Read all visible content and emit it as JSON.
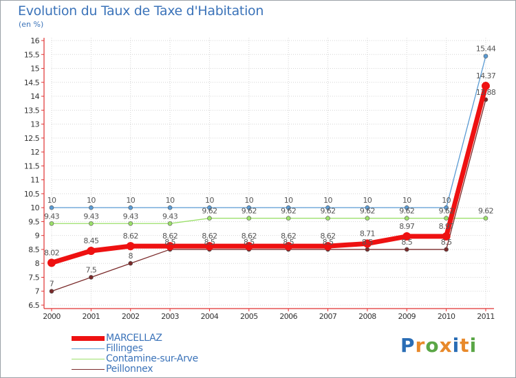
{
  "title": "Evolution du Taux de Taxe d'Habitation",
  "subtitle": "(en %)",
  "logo": {
    "letters": [
      "P",
      "r",
      "o",
      "x",
      "i",
      "t",
      "i"
    ],
    "colors": [
      "#2a6db5",
      "#e8892a",
      "#5aa646",
      "#e8892a",
      "#2a6db5",
      "#e8892a",
      "#5aa646"
    ]
  },
  "chart_data": {
    "type": "line",
    "title": "Evolution du Taux de Taxe d'Habitation",
    "ylabel": "(en %)",
    "x": [
      "2000",
      "2001",
      "2002",
      "2003",
      "2004",
      "2005",
      "2006",
      "2007",
      "2008",
      "2009",
      "2010",
      "2011"
    ],
    "ylim": [
      6.5,
      16
    ],
    "yticks": [
      "6.5",
      "7",
      "7.5",
      "8",
      "8.5",
      "9",
      "9.5",
      "10",
      "10.5",
      "11",
      "11.5",
      "12",
      "12.5",
      "13",
      "13.5",
      "14",
      "14.5",
      "15",
      "15.5",
      "16"
    ],
    "series": [
      {
        "name": "MARCELLAZ",
        "color": "#ee1111",
        "values": [
          8.02,
          8.45,
          8.62,
          8.62,
          8.62,
          8.62,
          8.62,
          8.62,
          8.71,
          8.97,
          8.97,
          14.37
        ],
        "labels": [
          "8.02",
          "8.45",
          "8.62",
          "8.62",
          "8.62",
          "8.62",
          "8.62",
          "8.62",
          "8.71",
          "8.97",
          "8.97",
          "14.37"
        ]
      },
      {
        "name": "Fillinges",
        "color": "#5a9bd4",
        "values": [
          10,
          10,
          10,
          10,
          10,
          10,
          10,
          10,
          10,
          10,
          10,
          15.44
        ],
        "labels": [
          "10",
          "10",
          "10",
          "10",
          "10",
          "10",
          "10",
          "10",
          "10",
          "10",
          "10",
          "15.44"
        ]
      },
      {
        "name": "Contamine-sur-Arve",
        "color": "#9be06a",
        "values": [
          9.43,
          9.43,
          9.43,
          9.43,
          9.62,
          9.62,
          9.62,
          9.62,
          9.62,
          9.62,
          9.62,
          9.62
        ],
        "labels": [
          "9.43",
          "9.43",
          "9.43",
          "9.43",
          "9.62",
          "9.62",
          "9.62",
          "9.62",
          "9.62",
          "9.62",
          "9.62",
          "9.62"
        ]
      },
      {
        "name": "Peillonnex",
        "color": "#7a2a2a",
        "values": [
          7,
          7.5,
          8,
          8.5,
          8.5,
          8.5,
          8.5,
          8.5,
          8.5,
          8.5,
          8.5,
          13.88
        ],
        "labels": [
          "7",
          "7.5",
          "8",
          "8.5",
          "8.5",
          "8.5",
          "8.5",
          "8.5",
          "8.5",
          "8.5",
          "8.5",
          "13.88"
        ]
      }
    ]
  }
}
